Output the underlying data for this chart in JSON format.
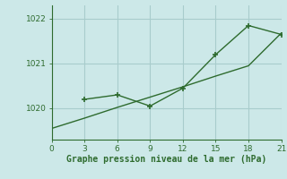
{
  "line1_x": [
    0,
    3,
    6,
    9,
    12,
    15,
    18,
    21
  ],
  "line1_y": [
    1019.55,
    1019.78,
    1020.02,
    1020.25,
    1020.48,
    1020.72,
    1020.95,
    1021.68
  ],
  "line2_x": [
    3,
    6,
    9,
    12,
    15,
    18,
    21
  ],
  "line2_y": [
    1020.2,
    1020.3,
    1020.05,
    1020.45,
    1021.2,
    1021.85,
    1021.65
  ],
  "line_color": "#2e6b2e",
  "bg_color": "#cce8e8",
  "grid_color": "#a8cccc",
  "xlabel": "Graphe pression niveau de la mer (hPa)",
  "xticks": [
    0,
    3,
    6,
    9,
    12,
    15,
    18,
    21
  ],
  "yticks": [
    1020,
    1021,
    1022
  ],
  "ylim": [
    1019.3,
    1022.3
  ],
  "xlim": [
    0,
    21
  ]
}
